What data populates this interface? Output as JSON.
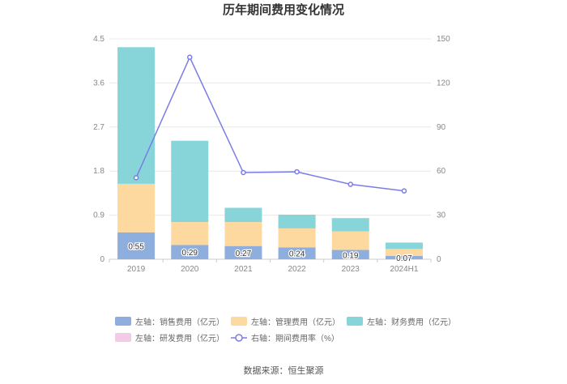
{
  "chart_data": {
    "type": "bar",
    "title": "历年期间费用变化情况",
    "categories": [
      "2019",
      "2020",
      "2021",
      "2022",
      "2023",
      "2024H1"
    ],
    "left_axis": {
      "min": 0,
      "max": 4.5,
      "ticks": [
        "0",
        "0.9",
        "1.8",
        "2.7",
        "3.6",
        "4.5"
      ]
    },
    "right_axis": {
      "min": 0,
      "max": 150,
      "ticks": [
        "0",
        "30",
        "60",
        "90",
        "120",
        "150"
      ]
    },
    "series": [
      {
        "name": "左轴：销售费用（亿元）",
        "color": "#8eaede",
        "values": [
          0.55,
          0.29,
          0.27,
          0.24,
          0.19,
          0.07
        ],
        "labels": [
          "0.55",
          "0.29",
          "0.27",
          "0.24",
          "0.19",
          "0.07"
        ]
      },
      {
        "name": "左轴：管理费用（亿元）",
        "color": "#fdd9a0",
        "values": [
          0.99,
          0.47,
          0.49,
          0.39,
          0.38,
          0.14
        ]
      },
      {
        "name": "左轴：财务费用（亿元）",
        "color": "#87d5d8",
        "values": [
          2.79,
          1.66,
          0.29,
          0.28,
          0.27,
          0.13
        ]
      },
      {
        "name": "左轴：研发费用（亿元）",
        "color": "#f3cbe6",
        "values": [
          0,
          0,
          0,
          0,
          0,
          0
        ]
      }
    ],
    "line": {
      "name": "右轴：期间费用率（%）",
      "color": "#7b7de6",
      "values": [
        55.5,
        137.5,
        59.0,
        59.5,
        51.0,
        46.5
      ]
    }
  },
  "source": "数据来源：恒生聚源"
}
